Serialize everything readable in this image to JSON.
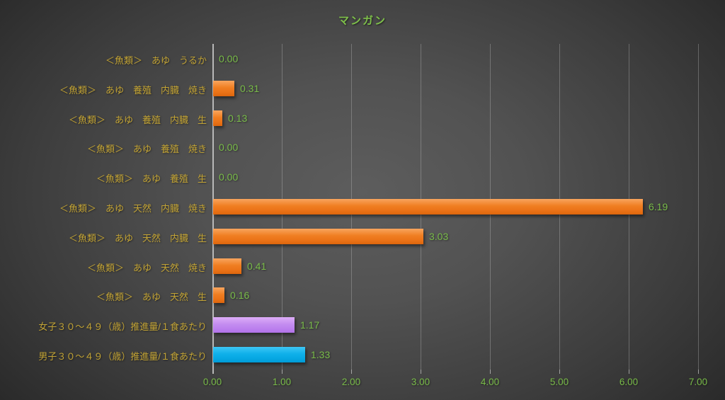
{
  "title": "マンガン",
  "colors": {
    "title_green": "#7ec04a",
    "label_green": "#79bb49",
    "category_yellow": "#c2a335",
    "bar_orange": "#f07e22",
    "bar_purple": "#c48df0",
    "bar_blue": "#0fb0ea",
    "background_dark": "#242424",
    "background_light": "#5d5d5d",
    "gridline": "#cdcdcd"
  },
  "chart_data": {
    "type": "bar",
    "orientation": "horizontal",
    "title": "マンガン",
    "categories": [
      "＜魚類＞　あゆ　うるか",
      "＜魚類＞　あゆ　養殖　内臓　焼き",
      "＜魚類＞　あゆ　養殖　内臓　生",
      "＜魚類＞　あゆ　養殖　焼き",
      "＜魚類＞　あゆ　養殖　生",
      "＜魚類＞　あゆ　天然　内臓　焼き",
      "＜魚類＞　あゆ　天然　内臓　生",
      "＜魚類＞　あゆ　天然　焼き",
      "＜魚類＞　あゆ　天然　生",
      "女子３０～４９（歳）推進量/１食あたり",
      "男子３０～４９（歳）推進量/１食あたり"
    ],
    "values": [
      0.0,
      0.31,
      0.13,
      0.0,
      0.0,
      6.19,
      3.03,
      0.41,
      0.16,
      1.17,
      1.33
    ],
    "value_labels": [
      "0.00",
      "0.31",
      "0.13",
      "0.00",
      "0.00",
      "6.19",
      "3.03",
      "0.41",
      "0.16",
      "1.17",
      "1.33"
    ],
    "bar_colors": [
      "orange",
      "orange",
      "orange",
      "orange",
      "orange",
      "orange",
      "orange",
      "orange",
      "orange",
      "purple",
      "blue"
    ],
    "x_tick_labels": [
      "0.00",
      "1.00",
      "2.00",
      "3.00",
      "4.00",
      "5.00",
      "6.00",
      "7.00"
    ],
    "xlim": [
      0,
      7
    ],
    "grid": "vertical",
    "legend": "none"
  }
}
